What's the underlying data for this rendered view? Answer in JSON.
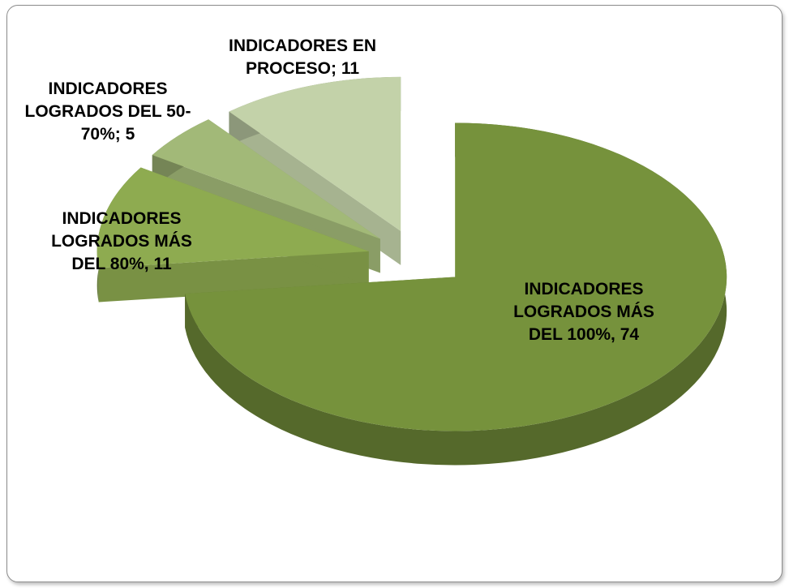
{
  "chart_data": {
    "type": "pie3d",
    "categories": [
      "INDICADORES LOGRADOS MÁS DEL 100%,",
      "INDICADORES LOGRADOS MÁS DEL 80%,",
      "INDICADORES LOGRADOS DEL 50-70%;",
      "INDICADORES EN PROCESO;"
    ],
    "values": [
      74,
      11,
      5,
      11
    ],
    "colors": [
      "#76923c",
      "#8eab50",
      "#a2b978",
      "#c3d2a9"
    ]
  }
}
